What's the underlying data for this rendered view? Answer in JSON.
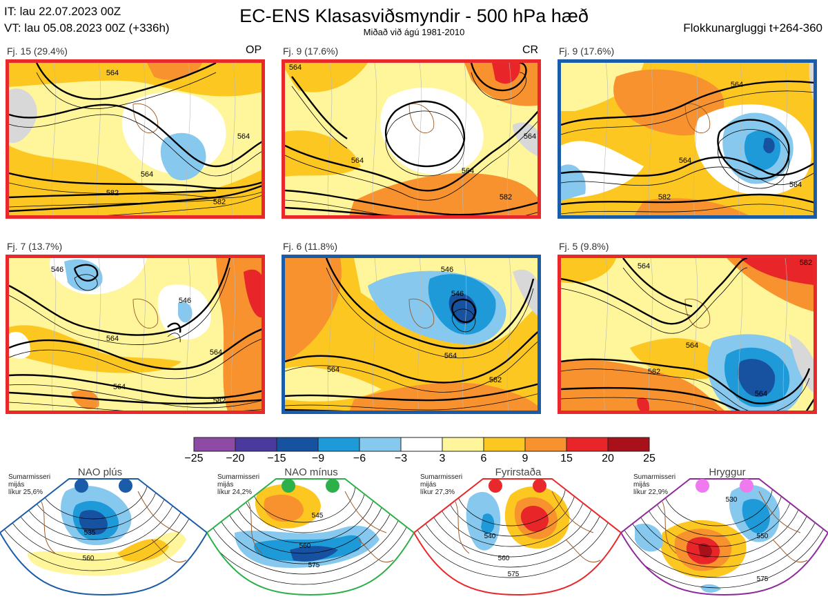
{
  "header": {
    "it_time": "IT: lau 22.07.2023 00Z",
    "vt_time": "VT: lau 05.08.2023 00Z  (+336h)",
    "title": "EC-ENS Klasasviðsmyndir - 500 hPa hæð",
    "subtitle": "Miðað við ágú 1981-2010",
    "window": "Flokkunargluggi t+264-360"
  },
  "panels": [
    {
      "label": "Fj. 15 (29.4%)",
      "tag": "OP",
      "border_color": "#e8282a",
      "contours": [
        "564",
        "564",
        "582",
        "582",
        "564"
      ]
    },
    {
      "label": "Fj. 9 (17.6%)",
      "tag": "CR",
      "border_color": "#e8282a",
      "contours": [
        "564",
        "564",
        "564",
        "582",
        "582",
        "564"
      ]
    },
    {
      "label": "Fj. 9 (17.6%)",
      "tag": "",
      "border_color": "#1a5ca8",
      "contours": [
        "564",
        "564",
        "582",
        "564"
      ]
    },
    {
      "label": "Fj. 7 (13.7%)",
      "tag": "",
      "border_color": "#e8282a",
      "contours": [
        "564",
        "546",
        "564",
        "582",
        "564",
        "546"
      ]
    },
    {
      "label": "Fj. 6 (11.8%)",
      "tag": "",
      "border_color": "#1a5ca8",
      "contours": [
        "546",
        "564",
        "564",
        "582",
        "546"
      ]
    },
    {
      "label": "Fj. 5 (9.8%)",
      "tag": "",
      "border_color": "#e8282a",
      "contours": [
        "564",
        "564",
        "582",
        "564",
        "582"
      ]
    }
  ],
  "colorbar": {
    "ticks": [
      "−25",
      "−20",
      "−15",
      "−9",
      "−6",
      "−3",
      "3",
      "6",
      "9",
      "15",
      "20",
      "25"
    ],
    "colors": [
      "#8e4ba6",
      "#4a3a9e",
      "#1652a0",
      "#1f9ad8",
      "#87c8ee",
      "#ffffff",
      "#fff59a",
      "#fdc722",
      "#f7922e",
      "#e8262a",
      "#a8101a"
    ]
  },
  "regimes": [
    {
      "name": "NAO plús",
      "line1": "Sumarmisseri",
      "line2": "mijás",
      "line3": "líkur 25,6%",
      "dot_color": "#1a5ca8",
      "frame_color": "#1a5ca8",
      "contours": [
        "535",
        "560"
      ]
    },
    {
      "name": "NAO mínus",
      "line1": "Sumarmisseri",
      "line2": "mijás",
      "line3": "líkur 24,2%",
      "dot_color": "#2bb04a",
      "frame_color": "#2bb04a",
      "contours": [
        "545",
        "560",
        "575"
      ]
    },
    {
      "name": "Fyrirstaða",
      "line1": "Sumarmisseri",
      "line2": "mijás",
      "line3": "líkur 27,3%",
      "dot_color": "#e8282a",
      "frame_color": "#e8282a",
      "contours": [
        "540",
        "560",
        "575"
      ]
    },
    {
      "name": "Hryggur",
      "line1": "Sumarmisseri",
      "line2": "mijás",
      "line3": "líkur 22,9%",
      "dot_color": "#ee7aee",
      "frame_color": "#8e2a9a",
      "contours": [
        "530",
        "550",
        "575"
      ]
    }
  ]
}
